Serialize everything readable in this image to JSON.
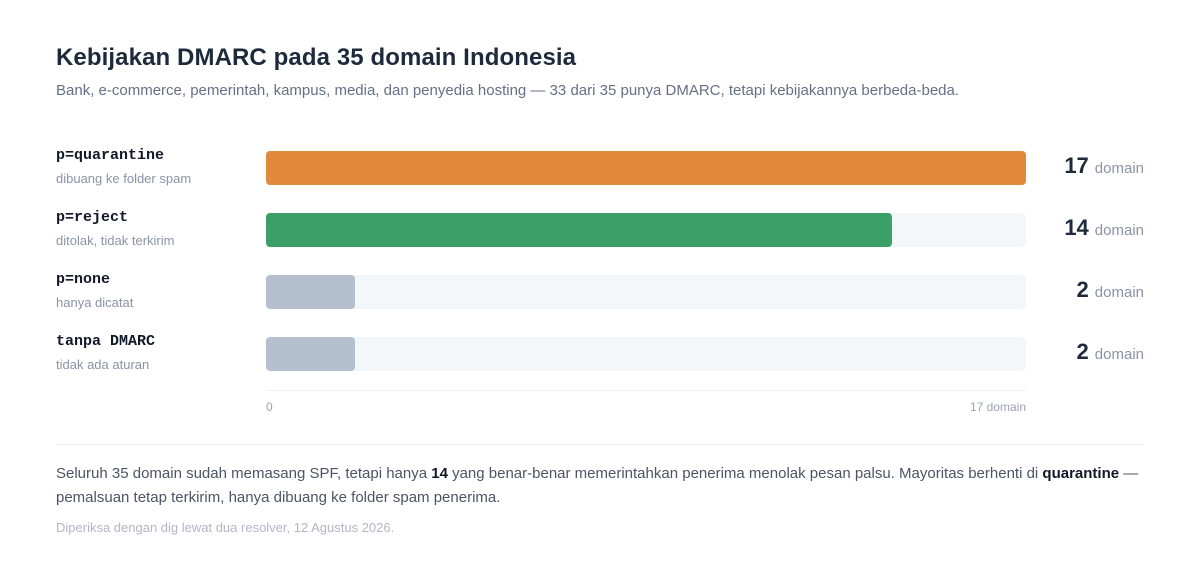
{
  "title": "Kebijakan DMARC pada 35 domain Indonesia",
  "subtitle": "Bank, e-commerce, pemerintah, kampus, media, dan penyedia hosting — 33 dari 35 punya DMARC, tetapi kebijakannya berbeda-beda.",
  "chart_data": {
    "type": "bar",
    "orientation": "horizontal",
    "categories": [
      "p=quarantine",
      "p=reject",
      "p=none",
      "tanpa DMARC"
    ],
    "descriptions": [
      "dibuang ke folder spam",
      "ditolak, tidak terkirim",
      "hanya dicatat",
      "tidak ada aturan"
    ],
    "values": [
      17,
      14,
      2,
      2
    ],
    "unit": "domain",
    "colors": [
      "#e28a3b",
      "#3c9f67",
      "#b5c0cf",
      "#b5c0cf"
    ],
    "track_color": "#f4f7fa",
    "xlim": [
      0,
      17
    ],
    "axis_min_label": "0",
    "axis_max_label": "17 domain",
    "grid": false
  },
  "summary": {
    "part1": "Seluruh 35 domain sudah memasang SPF, tetapi hanya ",
    "bold1": "14",
    "part2": " yang benar-benar memerintahkan penerima menolak pesan palsu. Mayoritas berhenti di ",
    "bold2": "quarantine",
    "part3": " — pemalsuan tetap terkirim, hanya dibuang ke folder spam penerima."
  },
  "footnote": "Diperiksa dengan dig lewat dua resolver, 12 Agustus 2026."
}
